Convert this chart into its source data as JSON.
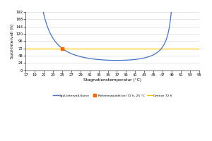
{
  "title": "",
  "xlabel": "Stagnationstemperatur (°C)",
  "ylabel": "Spül-Intervall (h)",
  "x_min": 17,
  "x_max": 55,
  "x_ticks": [
    17,
    19,
    21,
    23,
    25,
    27,
    29,
    31,
    33,
    35,
    37,
    39,
    41,
    43,
    45,
    47,
    49,
    51,
    53,
    55
  ],
  "y_min": 0,
  "y_max": 192,
  "y_ticks": [
    0,
    24,
    48,
    72,
    96,
    120,
    144,
    168,
    192
  ],
  "reference_x": 25,
  "reference_y": 72,
  "hline_y": 72,
  "curve_color": "#4472C4",
  "hline_color": "#FFC000",
  "ref_point_color": "#FF6600",
  "legend_curve": "Spül-Intervall-Kurve",
  "legend_ref": "Referenzpunkt bei 72 h, 25 °C",
  "legend_hline": "Grenze 72 h",
  "background_color": "#FFFFFF",
  "grid_color": "#D3D3D3"
}
